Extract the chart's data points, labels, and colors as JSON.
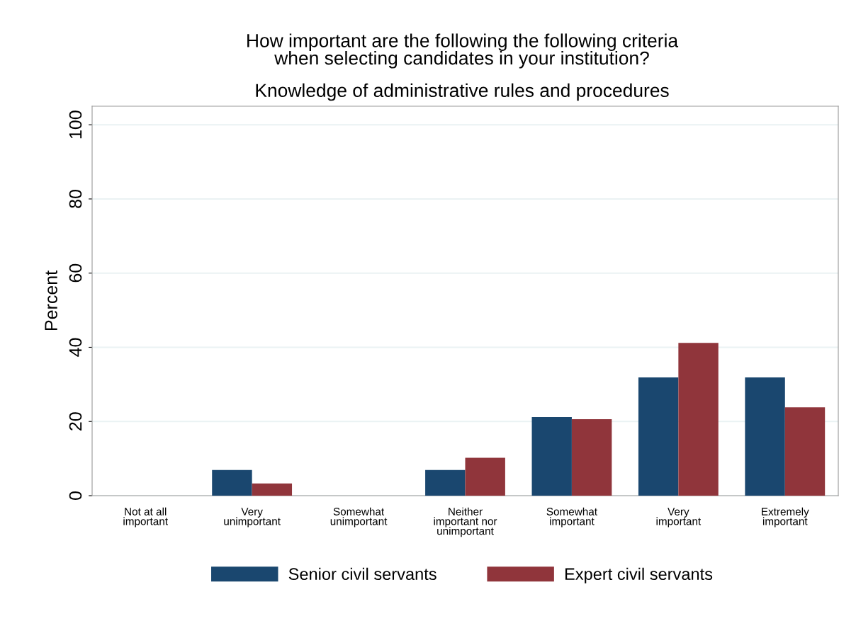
{
  "chart_data": {
    "type": "bar",
    "title": "How important are the following the following criteria\nwhen selecting candidates in your institution?",
    "subtitle": "Knowledge of administrative rules and procedures",
    "ylabel": "Percent",
    "categories": [
      "Not at all\nimportant",
      "Very\nunimportant",
      "Somewhat\nunimportant",
      "Neither\nimportant nor\nunimportant",
      "Somewhat\nimportant",
      "Very\nimportant",
      "Extremely\nimportant"
    ],
    "series": [
      {
        "name": "Senior civil servants",
        "color": "#1a476f",
        "values": [
          0,
          6.9,
          0,
          6.9,
          21.2,
          31.9,
          31.9
        ]
      },
      {
        "name": "Expert civil servants",
        "color": "#90353b",
        "values": [
          0,
          3.3,
          0,
          10.2,
          20.6,
          41.2,
          23.8
        ]
      }
    ],
    "ylim": [
      0,
      105
    ],
    "yticks": [
      0,
      20,
      40,
      60,
      80,
      100
    ],
    "grid": "y",
    "legend": "bottom"
  }
}
